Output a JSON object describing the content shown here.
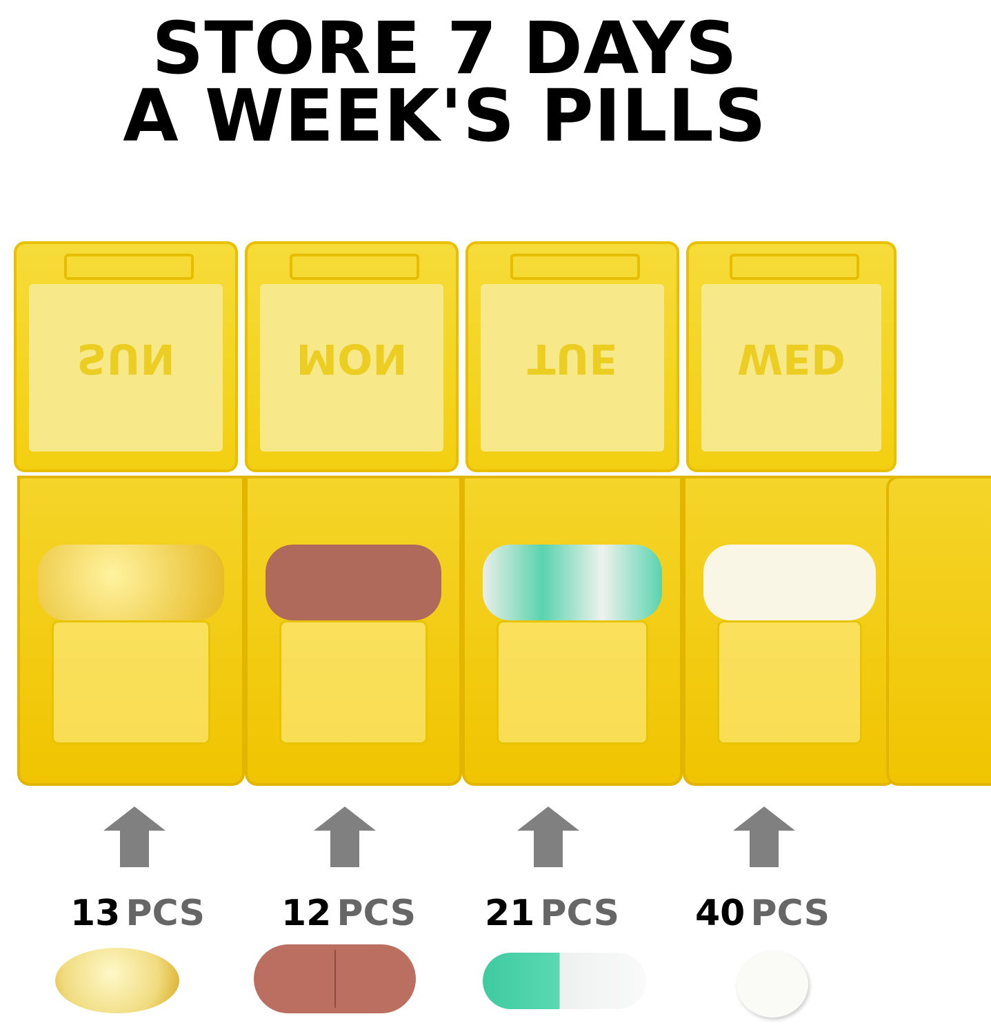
{
  "headline": {
    "line1": "STORE 7 DAYS",
    "line2": "A WEEK'S PILLS"
  },
  "compartments": [
    {
      "day": "SUN",
      "count": "13",
      "unit": "PCS",
      "pill": "softgel-capsule",
      "pill_color": "#f3e08a"
    },
    {
      "day": "MON",
      "count": "12",
      "unit": "PCS",
      "pill": "oval-tablet",
      "pill_color": "#b86b5e"
    },
    {
      "day": "TUE",
      "count": "21",
      "unit": "PCS",
      "pill": "two-tone-capsule",
      "pill_color": "#4fd1a8"
    },
    {
      "day": "WED",
      "count": "40",
      "unit": "PCS",
      "pill": "round-tablet",
      "pill_color": "#f7f5ee"
    }
  ],
  "colors": {
    "case": "#f3cf10",
    "arrow": "#808080"
  }
}
